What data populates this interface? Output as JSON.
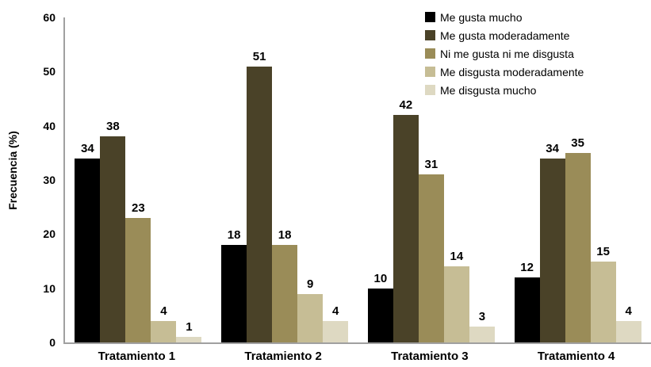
{
  "chart_data": {
    "type": "bar",
    "title": "",
    "xlabel": "",
    "ylabel": "Frecuencia (%)",
    "ylim": [
      0,
      60
    ],
    "yticks": [
      0,
      10,
      20,
      30,
      40,
      50,
      60
    ],
    "grid": false,
    "value_labels": true,
    "legend_position": "top-right",
    "axis_color": "#a0a0a0",
    "categories": [
      "Tratamiento 1",
      "Tratamiento 2",
      "Tratamiento 3",
      "Tratamiento 4"
    ],
    "series": [
      {
        "name": "Me gusta mucho",
        "color": "#000000",
        "values": [
          34,
          18,
          10,
          12
        ]
      },
      {
        "name": "Me gusta moderadamente",
        "color": "#4a4228",
        "values": [
          38,
          51,
          42,
          34
        ]
      },
      {
        "name": "Ni me gusta ni me disgusta",
        "color": "#9a8c58",
        "values": [
          23,
          18,
          31,
          35
        ]
      },
      {
        "name": "Me disgusta moderadamente",
        "color": "#c6bd95",
        "values": [
          4,
          9,
          14,
          15
        ]
      },
      {
        "name": "Me disgusta mucho",
        "color": "#ded9c2",
        "values": [
          1,
          4,
          3,
          4
        ]
      }
    ]
  }
}
